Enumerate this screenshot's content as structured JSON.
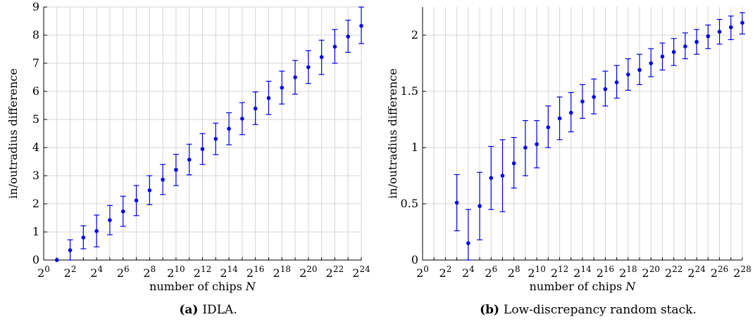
{
  "chart_data": [
    {
      "type": "scatter",
      "caption_tag": "(a)",
      "caption_text": "IDLA.",
      "xlabel": "number of chips N",
      "ylabel": "in/outradius difference",
      "x_scale": "log2",
      "xlim_exponent": [
        0,
        24
      ],
      "ylim": [
        0,
        9
      ],
      "grid": true,
      "x_ticks": [
        {
          "base": "2",
          "exp": "0"
        },
        {
          "base": "2",
          "exp": "2"
        },
        {
          "base": "2",
          "exp": "4"
        },
        {
          "base": "2",
          "exp": "6"
        },
        {
          "base": "2",
          "exp": "8"
        },
        {
          "base": "2",
          "exp": "10"
        },
        {
          "base": "2",
          "exp": "12"
        },
        {
          "base": "2",
          "exp": "14"
        },
        {
          "base": "2",
          "exp": "16"
        },
        {
          "base": "2",
          "exp": "18"
        },
        {
          "base": "2",
          "exp": "20"
        },
        {
          "base": "2",
          "exp": "22"
        },
        {
          "base": "2",
          "exp": "24"
        }
      ],
      "y_ticks": [
        "0",
        "1",
        "2",
        "3",
        "4",
        "5",
        "6",
        "7",
        "8",
        "9"
      ],
      "color": "#0000e6",
      "series": [
        {
          "x_exponent": [
            1,
            2,
            3,
            4,
            5,
            6,
            7,
            8,
            9,
            10,
            11,
            12,
            13,
            14,
            15,
            16,
            17,
            18,
            19,
            20,
            21,
            22,
            23,
            24
          ],
          "y": [
            0.0,
            0.35,
            0.8,
            1.03,
            1.42,
            1.73,
            2.12,
            2.48,
            2.86,
            3.21,
            3.57,
            3.95,
            4.31,
            4.67,
            5.03,
            5.39,
            5.76,
            6.13,
            6.5,
            6.86,
            7.22,
            7.59,
            7.95,
            8.33
          ],
          "y_low": [
            0.0,
            0.0,
            0.4,
            0.47,
            0.9,
            1.2,
            1.58,
            1.97,
            2.33,
            2.65,
            3.03,
            3.4,
            3.75,
            4.1,
            4.46,
            4.82,
            5.18,
            5.55,
            5.9,
            6.28,
            6.6,
            7.0,
            7.39,
            7.7
          ],
          "y_high": [
            0.0,
            0.72,
            1.22,
            1.6,
            1.94,
            2.27,
            2.65,
            3.0,
            3.4,
            3.76,
            4.12,
            4.5,
            4.87,
            5.24,
            5.6,
            5.98,
            6.36,
            6.72,
            7.1,
            7.45,
            7.82,
            8.2,
            8.53,
            9.0
          ]
        }
      ]
    },
    {
      "type": "scatter",
      "caption_tag": "(b)",
      "caption_text": "Low-discrepancy random stack.",
      "xlabel": "number of chips N",
      "ylabel": "in/outradius difference",
      "x_scale": "log2",
      "xlim_exponent": [
        0,
        28
      ],
      "ylim": [
        0,
        2.25
      ],
      "grid": true,
      "x_ticks": [
        {
          "base": "2",
          "exp": "0"
        },
        {
          "base": "2",
          "exp": "2"
        },
        {
          "base": "2",
          "exp": "4"
        },
        {
          "base": "2",
          "exp": "6"
        },
        {
          "base": "2",
          "exp": "8"
        },
        {
          "base": "2",
          "exp": "10"
        },
        {
          "base": "2",
          "exp": "12"
        },
        {
          "base": "2",
          "exp": "14"
        },
        {
          "base": "2",
          "exp": "16"
        },
        {
          "base": "2",
          "exp": "18"
        },
        {
          "base": "2",
          "exp": "20"
        },
        {
          "base": "2",
          "exp": "22"
        },
        {
          "base": "2",
          "exp": "24"
        },
        {
          "base": "2",
          "exp": "26"
        },
        {
          "base": "2",
          "exp": "28"
        }
      ],
      "y_ticks": [
        "0",
        "0.5",
        "1",
        "1.5",
        "2"
      ],
      "color": "#0000e6",
      "series": [
        {
          "x_exponent": [
            3,
            4,
            5,
            6,
            7,
            8,
            9,
            10,
            11,
            12,
            13,
            14,
            15,
            16,
            17,
            18,
            19,
            20,
            21,
            22,
            23,
            24,
            25,
            26,
            27,
            28
          ],
          "y": [
            0.51,
            0.15,
            0.48,
            0.73,
            0.75,
            0.86,
            1.0,
            1.03,
            1.18,
            1.26,
            1.31,
            1.41,
            1.45,
            1.52,
            1.58,
            1.65,
            1.69,
            1.75,
            1.81,
            1.85,
            1.9,
            1.94,
            1.99,
            2.03,
            2.07,
            2.11
          ],
          "y_low": [
            0.26,
            0.0,
            0.18,
            0.45,
            0.43,
            0.64,
            0.75,
            0.82,
            1.0,
            1.07,
            1.14,
            1.26,
            1.3,
            1.37,
            1.44,
            1.51,
            1.56,
            1.63,
            1.69,
            1.73,
            1.79,
            1.83,
            1.88,
            1.92,
            1.96,
            2.01
          ],
          "y_high": [
            0.76,
            0.45,
            0.78,
            1.01,
            1.07,
            1.09,
            1.24,
            1.24,
            1.37,
            1.45,
            1.49,
            1.56,
            1.61,
            1.68,
            1.73,
            1.79,
            1.83,
            1.88,
            1.93,
            1.97,
            2.02,
            2.05,
            2.09,
            2.14,
            2.17,
            2.2
          ]
        }
      ]
    }
  ]
}
